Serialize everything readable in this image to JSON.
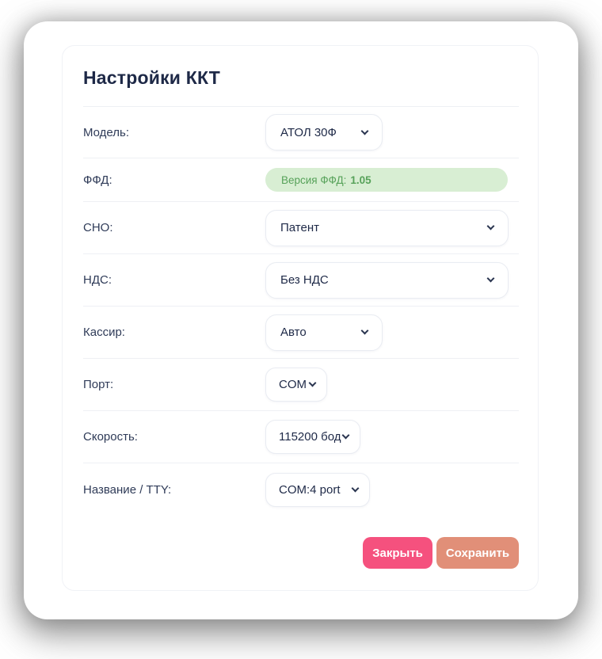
{
  "window": {
    "title": "Настройки ККТ"
  },
  "form": {
    "rows": [
      {
        "label": "Модель:",
        "value": "АТОЛ 30Ф"
      },
      {
        "label": "ФФД:",
        "badge": {
          "label": "Версия ФФД:",
          "value": "1.05"
        }
      },
      {
        "label": "СНО:",
        "value": "Патент"
      },
      {
        "label": "НДС:",
        "value": "Без НДС"
      },
      {
        "label": "Кассир:",
        "value": "Авто"
      },
      {
        "label": "Порт:",
        "value": "COM"
      },
      {
        "label": "Скорость:",
        "value": "115200 бод"
      },
      {
        "label": "Название / TTY:",
        "value": "COM:4 port"
      }
    ]
  },
  "buttons": {
    "close": "Закрыть",
    "save": "Сохранить"
  },
  "colors": {
    "title_text": "#1e2947",
    "label_text": "#2f3b58",
    "badge_bg": "#d8eed3",
    "badge_text": "#57a25a",
    "close_button": "#f5517e",
    "save_button": "#e18f78"
  }
}
